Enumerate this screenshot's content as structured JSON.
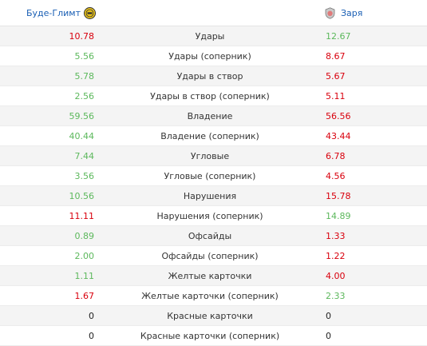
{
  "header": {
    "home_team": "Буде-Глимт",
    "away_team": "Заря",
    "home_logo_icon": "bodo-glimt-crest-icon",
    "away_logo_icon": "zorya-crest-icon"
  },
  "colors": {
    "better": "#5cb85c",
    "worse": "#d9000d",
    "neutral": "#222222",
    "link": "#1a5fb4"
  },
  "rows": [
    {
      "label": "Удары",
      "home": "10.78",
      "away": "12.67",
      "home_class": "bad",
      "away_class": "good"
    },
    {
      "label": "Удары (соперник)",
      "home": "5.56",
      "away": "8.67",
      "home_class": "good",
      "away_class": "bad"
    },
    {
      "label": "Удары в створ",
      "home": "5.78",
      "away": "5.67",
      "home_class": "good",
      "away_class": "bad"
    },
    {
      "label": "Удары в створ (соперник)",
      "home": "2.56",
      "away": "5.11",
      "home_class": "good",
      "away_class": "bad"
    },
    {
      "label": "Владение",
      "home": "59.56",
      "away": "56.56",
      "home_class": "good",
      "away_class": "bad"
    },
    {
      "label": "Владение (соперник)",
      "home": "40.44",
      "away": "43.44",
      "home_class": "good",
      "away_class": "bad"
    },
    {
      "label": "Угловые",
      "home": "7.44",
      "away": "6.78",
      "home_class": "good",
      "away_class": "bad"
    },
    {
      "label": "Угловые (соперник)",
      "home": "3.56",
      "away": "4.56",
      "home_class": "good",
      "away_class": "bad"
    },
    {
      "label": "Нарушения",
      "home": "10.56",
      "away": "15.78",
      "home_class": "good",
      "away_class": "bad"
    },
    {
      "label": "Нарушения (соперник)",
      "home": "11.11",
      "away": "14.89",
      "home_class": "bad",
      "away_class": "good"
    },
    {
      "label": "Офсайды",
      "home": "0.89",
      "away": "1.33",
      "home_class": "good",
      "away_class": "bad"
    },
    {
      "label": "Офсайды (соперник)",
      "home": "2.00",
      "away": "1.22",
      "home_class": "good",
      "away_class": "bad"
    },
    {
      "label": "Желтые карточки",
      "home": "1.11",
      "away": "4.00",
      "home_class": "good",
      "away_class": "bad"
    },
    {
      "label": "Желтые карточки (соперник)",
      "home": "1.67",
      "away": "2.33",
      "home_class": "bad",
      "away_class": "good"
    },
    {
      "label": "Красные карточки",
      "home": "0",
      "away": "0",
      "home_class": "neutral",
      "away_class": "neutral"
    },
    {
      "label": "Красные карточки (соперник)",
      "home": "0",
      "away": "0",
      "home_class": "neutral",
      "away_class": "neutral"
    }
  ]
}
